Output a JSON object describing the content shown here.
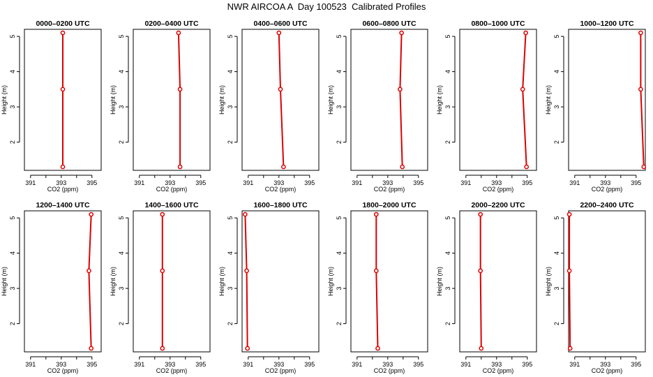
{
  "title": "NWR AIRCOA A  Day 100523  Calibrated Profiles",
  "style": {
    "line_color": "#dd0000",
    "point_color": "#dd0000"
  },
  "chart_data": [
    {
      "type": "line",
      "title": "0000–0200 UTC",
      "xlabel": "CO2 (ppm)",
      "ylabel": "Height (m)",
      "xlim": [
        390.6,
        395.6
      ],
      "ylim": [
        1.2,
        5.2
      ],
      "xticks": [
        391,
        392,
        393,
        394,
        395
      ],
      "xticklabels": [
        "391",
        "",
        "393",
        "",
        "395"
      ],
      "yticks": [
        2,
        3,
        4,
        5
      ],
      "points": [
        {
          "x": 393.1,
          "y": 5.1
        },
        {
          "x": 393.1,
          "y": 3.5
        },
        {
          "x": 393.1,
          "y": 1.3
        }
      ]
    },
    {
      "type": "line",
      "title": "0200–0400 UTC",
      "xlabel": "CO2 (ppm)",
      "ylabel": "Height (m)",
      "xlim": [
        390.6,
        395.6
      ],
      "ylim": [
        1.2,
        5.2
      ],
      "xticks": [
        391,
        392,
        393,
        394,
        395
      ],
      "xticklabels": [
        "391",
        "",
        "393",
        "",
        "395"
      ],
      "yticks": [
        2,
        3,
        4,
        5
      ],
      "points": [
        {
          "x": 393.55,
          "y": 5.1
        },
        {
          "x": 393.65,
          "y": 3.5
        },
        {
          "x": 393.65,
          "y": 1.3
        }
      ]
    },
    {
      "type": "line",
      "title": "0400–0600 UTC",
      "xlabel": "CO2 (ppm)",
      "ylabel": "Height (m)",
      "xlim": [
        390.6,
        395.6
      ],
      "ylim": [
        1.2,
        5.2
      ],
      "xticks": [
        391,
        392,
        393,
        394,
        395
      ],
      "xticklabels": [
        "391",
        "",
        "393",
        "",
        "395"
      ],
      "yticks": [
        2,
        3,
        4,
        5
      ],
      "points": [
        {
          "x": 393.0,
          "y": 5.1
        },
        {
          "x": 393.1,
          "y": 3.5
        },
        {
          "x": 393.3,
          "y": 1.3
        }
      ]
    },
    {
      "type": "line",
      "title": "0600–0800 UTC",
      "xlabel": "CO2 (ppm)",
      "ylabel": "Height (m)",
      "xlim": [
        390.6,
        395.6
      ],
      "ylim": [
        1.2,
        5.2
      ],
      "xticks": [
        391,
        392,
        393,
        394,
        395
      ],
      "xticklabels": [
        "391",
        "",
        "393",
        "",
        "395"
      ],
      "yticks": [
        2,
        3,
        4,
        5
      ],
      "points": [
        {
          "x": 393.9,
          "y": 5.1
        },
        {
          "x": 393.8,
          "y": 3.5
        },
        {
          "x": 393.95,
          "y": 1.3
        }
      ]
    },
    {
      "type": "line",
      "title": "0800–1000 UTC",
      "xlabel": "CO2 (ppm)",
      "ylabel": "Height (m)",
      "xlim": [
        390.6,
        395.6
      ],
      "ylim": [
        1.2,
        5.2
      ],
      "xticks": [
        391,
        392,
        393,
        394,
        395
      ],
      "xticklabels": [
        "391",
        "",
        "393",
        "",
        "395"
      ],
      "yticks": [
        2,
        3,
        4,
        5
      ],
      "points": [
        {
          "x": 394.9,
          "y": 5.1
        },
        {
          "x": 394.7,
          "y": 3.5
        },
        {
          "x": 394.95,
          "y": 1.3
        }
      ]
    },
    {
      "type": "line",
      "title": "1000–1200 UTC",
      "xlabel": "CO2 (ppm)",
      "ylabel": "Height (m)",
      "xlim": [
        390.6,
        395.6
      ],
      "ylim": [
        1.2,
        5.2
      ],
      "xticks": [
        391,
        392,
        393,
        394,
        395
      ],
      "xticklabels": [
        "391",
        "",
        "393",
        "",
        "395"
      ],
      "yticks": [
        2,
        3,
        4,
        5
      ],
      "points": [
        {
          "x": 395.3,
          "y": 5.1
        },
        {
          "x": 395.3,
          "y": 3.5
        },
        {
          "x": 395.5,
          "y": 1.3
        }
      ]
    },
    {
      "type": "line",
      "title": "1200–1400 UTC",
      "xlabel": "CO2 (ppm)",
      "ylabel": "Height (m)",
      "xlim": [
        390.6,
        395.6
      ],
      "ylim": [
        1.2,
        5.2
      ],
      "xticks": [
        391,
        392,
        393,
        394,
        395
      ],
      "xticklabels": [
        "391",
        "",
        "393",
        "",
        "395"
      ],
      "yticks": [
        2,
        3,
        4,
        5
      ],
      "points": [
        {
          "x": 394.95,
          "y": 5.1
        },
        {
          "x": 394.8,
          "y": 3.5
        },
        {
          "x": 394.95,
          "y": 1.3
        }
      ]
    },
    {
      "type": "line",
      "title": "1400–1600 UTC",
      "xlabel": "CO2 (ppm)",
      "ylabel": "Height (m)",
      "xlim": [
        390.6,
        395.6
      ],
      "ylim": [
        1.2,
        5.2
      ],
      "xticks": [
        391,
        392,
        393,
        394,
        395
      ],
      "xticklabels": [
        "391",
        "",
        "393",
        "",
        "395"
      ],
      "yticks": [
        2,
        3,
        4,
        5
      ],
      "points": [
        {
          "x": 392.5,
          "y": 5.1
        },
        {
          "x": 392.5,
          "y": 3.5
        },
        {
          "x": 392.5,
          "y": 1.3
        }
      ]
    },
    {
      "type": "line",
      "title": "1600–1800 UTC",
      "xlabel": "CO2 (ppm)",
      "ylabel": "Height (m)",
      "xlim": [
        390.6,
        395.6
      ],
      "ylim": [
        1.2,
        5.2
      ],
      "xticks": [
        391,
        392,
        393,
        394,
        395
      ],
      "xticklabels": [
        "391",
        "",
        "393",
        "",
        "395"
      ],
      "yticks": [
        2,
        3,
        4,
        5
      ],
      "points": [
        {
          "x": 390.8,
          "y": 5.1
        },
        {
          "x": 390.9,
          "y": 3.5
        },
        {
          "x": 390.95,
          "y": 1.3
        }
      ]
    },
    {
      "type": "line",
      "title": "1800–2000 UTC",
      "xlabel": "CO2 (ppm)",
      "ylabel": "Height (m)",
      "xlim": [
        390.6,
        395.6
      ],
      "ylim": [
        1.2,
        5.2
      ],
      "xticks": [
        391,
        392,
        393,
        394,
        395
      ],
      "xticklabels": [
        "391",
        "",
        "393",
        "",
        "395"
      ],
      "yticks": [
        2,
        3,
        4,
        5
      ],
      "points": [
        {
          "x": 392.25,
          "y": 5.1
        },
        {
          "x": 392.25,
          "y": 3.5
        },
        {
          "x": 392.35,
          "y": 1.3
        }
      ]
    },
    {
      "type": "line",
      "title": "2000–2200 UTC",
      "xlabel": "CO2 (ppm)",
      "ylabel": "Height (m)",
      "xlim": [
        390.6,
        395.6
      ],
      "ylim": [
        1.2,
        5.2
      ],
      "xticks": [
        391,
        392,
        393,
        394,
        395
      ],
      "xticklabels": [
        "391",
        "",
        "393",
        "",
        "395"
      ],
      "yticks": [
        2,
        3,
        4,
        5
      ],
      "points": [
        {
          "x": 391.95,
          "y": 5.1
        },
        {
          "x": 391.95,
          "y": 3.5
        },
        {
          "x": 392.0,
          "y": 1.3
        }
      ]
    },
    {
      "type": "line",
      "title": "2200–2400 UTC",
      "xlabel": "CO2 (ppm)",
      "ylabel": "Height (m)",
      "xlim": [
        390.6,
        395.6
      ],
      "ylim": [
        1.2,
        5.2
      ],
      "xticks": [
        391,
        392,
        393,
        394,
        395
      ],
      "xticklabels": [
        "391",
        "",
        "393",
        "",
        "395"
      ],
      "yticks": [
        2,
        3,
        4,
        5
      ],
      "points": [
        {
          "x": 390.65,
          "y": 5.1
        },
        {
          "x": 390.65,
          "y": 3.5
        },
        {
          "x": 390.7,
          "y": 1.3
        }
      ]
    }
  ]
}
